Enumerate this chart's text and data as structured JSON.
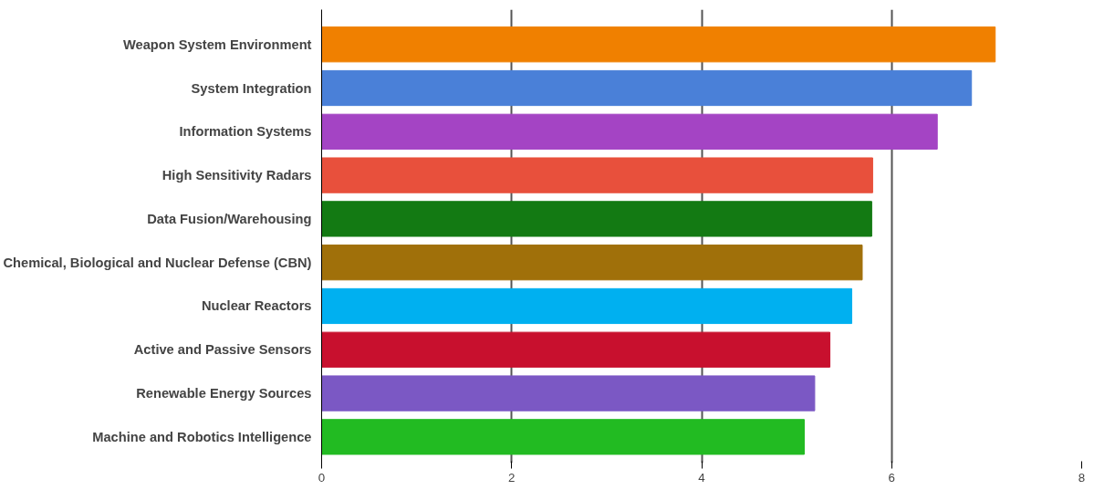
{
  "chart_data": {
    "type": "bar",
    "orientation": "horizontal",
    "categories": [
      "Weapon System Environment",
      "System Integration",
      "Information Systems",
      "High Sensitivity Radars",
      "Data Fusion/Warehousing",
      "Chemical, Biological and Nuclear Defense (CBN)",
      "Nuclear Reactors",
      "Active and Passive Sensors",
      "Renewable Energy Sources",
      "Machine and Robotics Intelligence"
    ],
    "values": [
      7.09,
      6.84,
      6.48,
      5.8,
      5.79,
      5.69,
      5.58,
      5.35,
      5.19,
      5.08
    ],
    "colors": [
      "#f08000",
      "#4a80d8",
      "#a444c4",
      "#e8503c",
      "#137a13",
      "#a0700a",
      "#00b0f0",
      "#c8102e",
      "#7b58c4",
      "#22bb22"
    ],
    "xlim": [
      0,
      8
    ],
    "xticks": [
      0,
      2,
      4,
      6,
      8
    ],
    "grid": "x"
  }
}
